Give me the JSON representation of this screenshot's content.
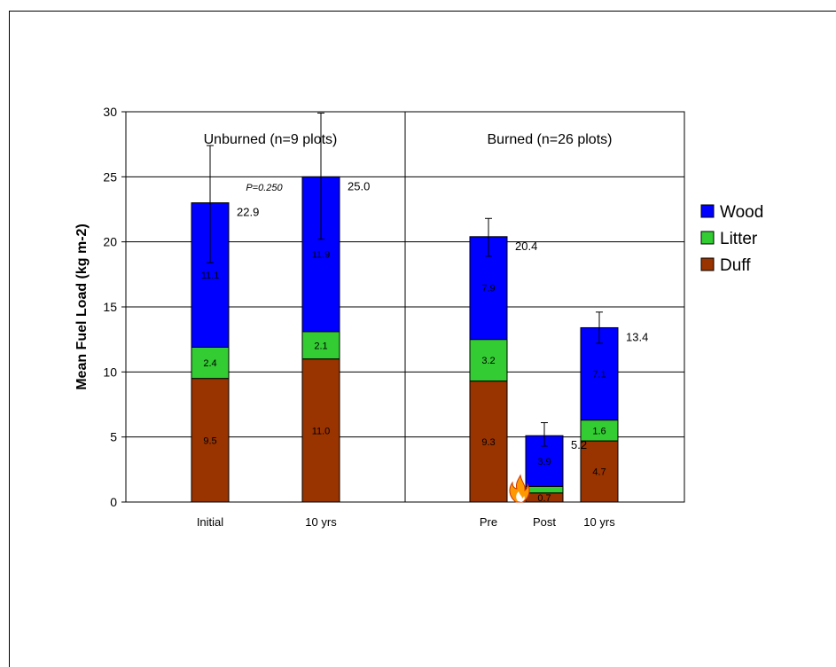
{
  "chart_data": {
    "type": "bar",
    "stacked": true,
    "ylabel": "Mean Fuel Load (kg m-2)",
    "xlabel": "",
    "ylim": [
      0,
      30
    ],
    "yticks": [
      0,
      5,
      10,
      15,
      20,
      25,
      30
    ],
    "grid": true,
    "legend_position": "right",
    "panels": [
      {
        "label": "Unburned (n=9 plots)",
        "categories": [
          "Initial",
          "10 yrs"
        ]
      },
      {
        "label": "Burned (n=26 plots)",
        "categories": [
          "Pre",
          "Post",
          "10 yrs"
        ]
      }
    ],
    "categories": [
      "Initial",
      "10 yrs",
      "Pre",
      "Post",
      "10 yrs"
    ],
    "series": [
      {
        "name": "Duff",
        "color": "#993300",
        "values": [
          9.5,
          11.0,
          9.3,
          0.7,
          4.7
        ],
        "labels": [
          "9.5",
          "11.0",
          "9.3",
          "0.7",
          "4.7"
        ]
      },
      {
        "name": "Litter",
        "color": "#33cc33",
        "values": [
          2.4,
          2.1,
          3.2,
          0.5,
          1.6
        ],
        "labels": [
          "2.4",
          "2.1",
          "3.2",
          "",
          "1.6"
        ]
      },
      {
        "name": "Wood",
        "color": "#0000ff",
        "values": [
          11.1,
          11.9,
          7.9,
          3.9,
          7.1
        ],
        "labels": [
          "11.1",
          "11.9",
          "7.9",
          "3.9",
          "7.1"
        ]
      }
    ],
    "totals": [
      "22.9",
      "25.0",
      "20.4",
      "5.2",
      "13.4"
    ],
    "error_bars": [
      {
        "low": 18.4,
        "high": 27.4
      },
      {
        "low": 20.2,
        "high": 29.9
      },
      {
        "low": 18.9,
        "high": 21.8
      },
      {
        "low": 4.3,
        "high": 6.1
      },
      {
        "low": 12.2,
        "high": 14.6
      }
    ],
    "annotations": [
      {
        "text": "P=0.250"
      }
    ],
    "fire_icon": "flame-icon"
  }
}
